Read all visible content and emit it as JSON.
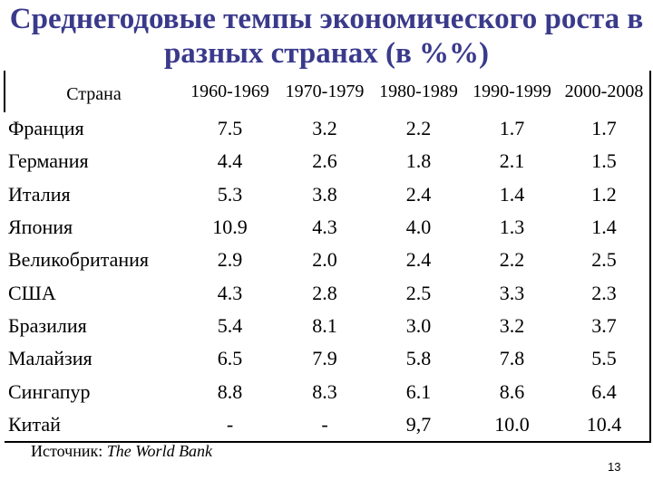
{
  "title": {
    "line1": "Среднегодовые темпы экономического роста в",
    "line2": "разных странах (в %%)"
  },
  "table": {
    "header": [
      "Страна",
      "1960-1969",
      "1970-1979",
      "1980-1989",
      "1990-1999",
      "2000-2008"
    ],
    "rows": [
      [
        "Франция",
        "7.5",
        "3.2",
        "2.2",
        "1.7",
        "1.7"
      ],
      [
        "Германия",
        "4.4",
        "2.6",
        "1.8",
        "2.1",
        "1.5"
      ],
      [
        "Италия",
        "5.3",
        "3.8",
        "2.4",
        "1.4",
        "1.2"
      ],
      [
        "Япония",
        "10.9",
        "4.3",
        "4.0",
        "1.3",
        "1.4"
      ],
      [
        "Великобритания",
        "2.9",
        "2.0",
        "2.4",
        "2.2",
        "2.5"
      ],
      [
        "США",
        "4.3",
        "2.8",
        "2.5",
        "3.3",
        "2.3"
      ],
      [
        "Бразилия",
        "5.4",
        "8.1",
        "3.0",
        "3.2",
        "3.7"
      ],
      [
        "Малайзия",
        "6.5",
        "7.9",
        "5.8",
        "7.8",
        "5.5"
      ],
      [
        "Сингапур",
        "8.8",
        "8.3",
        "6.1",
        "8.6",
        "6.4"
      ],
      [
        "Китай",
        "-",
        "-",
        "9,7",
        "10.0",
        "10.4"
      ]
    ]
  },
  "source": {
    "label": "Источник:",
    "name": "The World Bank"
  },
  "page_number": "13",
  "colors": {
    "title": "#3a3a8c",
    "text": "#000000",
    "background": "#ffffff"
  }
}
